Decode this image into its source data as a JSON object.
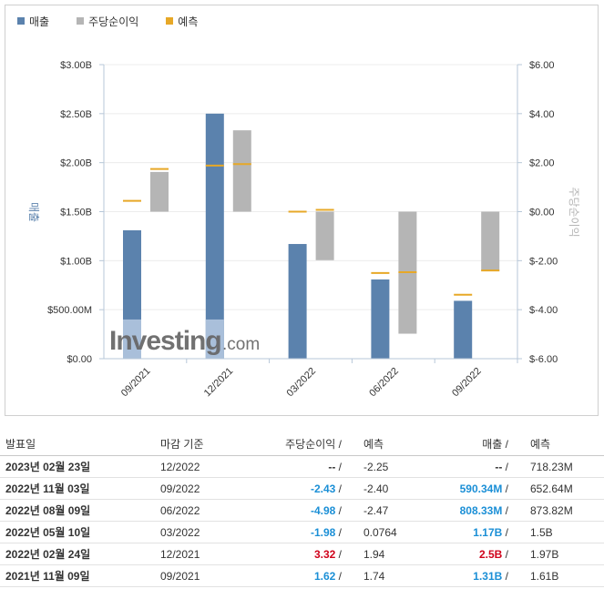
{
  "legend": {
    "revenue": "매출",
    "eps": "주당순이익",
    "forecast": "예측"
  },
  "colors": {
    "revenue": "#5b82ad",
    "revenue_light": "#a9bfda",
    "eps": "#b5b5b5",
    "forecast": "#e7a827",
    "positive": "#1b8fd6",
    "negative": "#d0021b"
  },
  "watermark": {
    "brand": "Investing",
    "suffix": ".com"
  },
  "chart_data": {
    "type": "bar",
    "categories": [
      "09/2021",
      "12/2021",
      "03/2022",
      "06/2022",
      "09/2022"
    ],
    "y_left": {
      "label": "매출",
      "ylim": [
        0,
        3000000000
      ],
      "ticks": [
        0,
        500000000,
        1000000000,
        1500000000,
        2000000000,
        2500000000,
        3000000000
      ],
      "tick_labels": [
        "$0.00",
        "$500.00M",
        "$1.00B",
        "$1.50B",
        "$2.00B",
        "$2.50B",
        "$3.00B"
      ]
    },
    "y_right": {
      "label": "주당순이익",
      "ylim": [
        -6,
        6
      ],
      "ticks": [
        -6,
        -4,
        -2,
        0,
        2,
        4,
        6
      ],
      "tick_labels": [
        "$-6.00",
        "$-4.00",
        "$-2.00",
        "$0.00",
        "$2.00",
        "$4.00",
        "$6.00"
      ]
    },
    "grid": true,
    "legend_position": "top-left",
    "series": [
      {
        "name": "매출",
        "axis": "left",
        "values": [
          1310000000,
          2500000000,
          1170000000,
          808330000,
          590340000
        ]
      },
      {
        "name": "매출 예측",
        "axis": "left",
        "values": [
          1610000000,
          1970000000,
          1500000000,
          873820000,
          652640000
        ]
      },
      {
        "name": "주당순이익",
        "axis": "right",
        "values": [
          1.62,
          3.32,
          -1.98,
          -4.98,
          -2.43
        ]
      },
      {
        "name": "주당순이익 예측",
        "axis": "right",
        "values": [
          1.74,
          1.94,
          0.0764,
          -2.47,
          -2.4
        ]
      }
    ]
  },
  "table": {
    "headers": {
      "date": "발표일",
      "period": "마감 기준",
      "eps": "주당순이익",
      "eps_sep": " /",
      "eps_forecast": "예측",
      "revenue": "매출",
      "revenue_sep": " /",
      "revenue_forecast": "예측"
    },
    "rows": [
      {
        "date": "2023년 02월 23일",
        "period": "12/2022",
        "eps": "--",
        "eps_sep": " /",
        "eps_forecast": "-2.25",
        "revenue": "--",
        "revenue_sep": " /",
        "revenue_forecast": "718.23M",
        "eps_tone": "neu",
        "rev_tone": "neu"
      },
      {
        "date": "2022년 11월 03일",
        "period": "09/2022",
        "eps": "-2.43",
        "eps_sep": " /",
        "eps_forecast": "-2.40",
        "revenue": "590.34M",
        "revenue_sep": " /",
        "revenue_forecast": "652.64M",
        "eps_tone": "pos",
        "rev_tone": "pos"
      },
      {
        "date": "2022년 08월 09일",
        "period": "06/2022",
        "eps": "-4.98",
        "eps_sep": " /",
        "eps_forecast": "-2.47",
        "revenue": "808.33M",
        "revenue_sep": " /",
        "revenue_forecast": "873.82M",
        "eps_tone": "pos",
        "rev_tone": "pos"
      },
      {
        "date": "2022년 05월 10일",
        "period": "03/2022",
        "eps": "-1.98",
        "eps_sep": " /",
        "eps_forecast": "0.0764",
        "revenue": "1.17B",
        "revenue_sep": " /",
        "revenue_forecast": "1.5B",
        "eps_tone": "pos",
        "rev_tone": "pos"
      },
      {
        "date": "2022년 02월 24일",
        "period": "12/2021",
        "eps": "3.32",
        "eps_sep": " /",
        "eps_forecast": "1.94",
        "revenue": "2.5B",
        "revenue_sep": " /",
        "revenue_forecast": "1.97B",
        "eps_tone": "neg",
        "rev_tone": "neg"
      },
      {
        "date": "2021년 11월 09일",
        "period": "09/2021",
        "eps": "1.62",
        "eps_sep": " /",
        "eps_forecast": "1.74",
        "revenue": "1.31B",
        "revenue_sep": " /",
        "revenue_forecast": "1.61B",
        "eps_tone": "pos",
        "rev_tone": "pos"
      }
    ]
  }
}
